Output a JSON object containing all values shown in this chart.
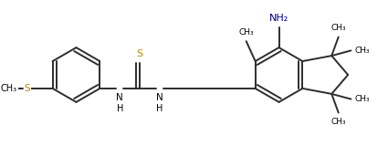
{
  "bg_color": "#ffffff",
  "bond_color": "#2d2d2d",
  "s_color": "#b8860b",
  "nh2_color": "#000080",
  "lw": 1.4,
  "figsize": [
    4.25,
    1.6
  ],
  "dpi": 100,
  "xlim": [
    0,
    4.25
  ],
  "ylim": [
    0,
    1.6
  ]
}
